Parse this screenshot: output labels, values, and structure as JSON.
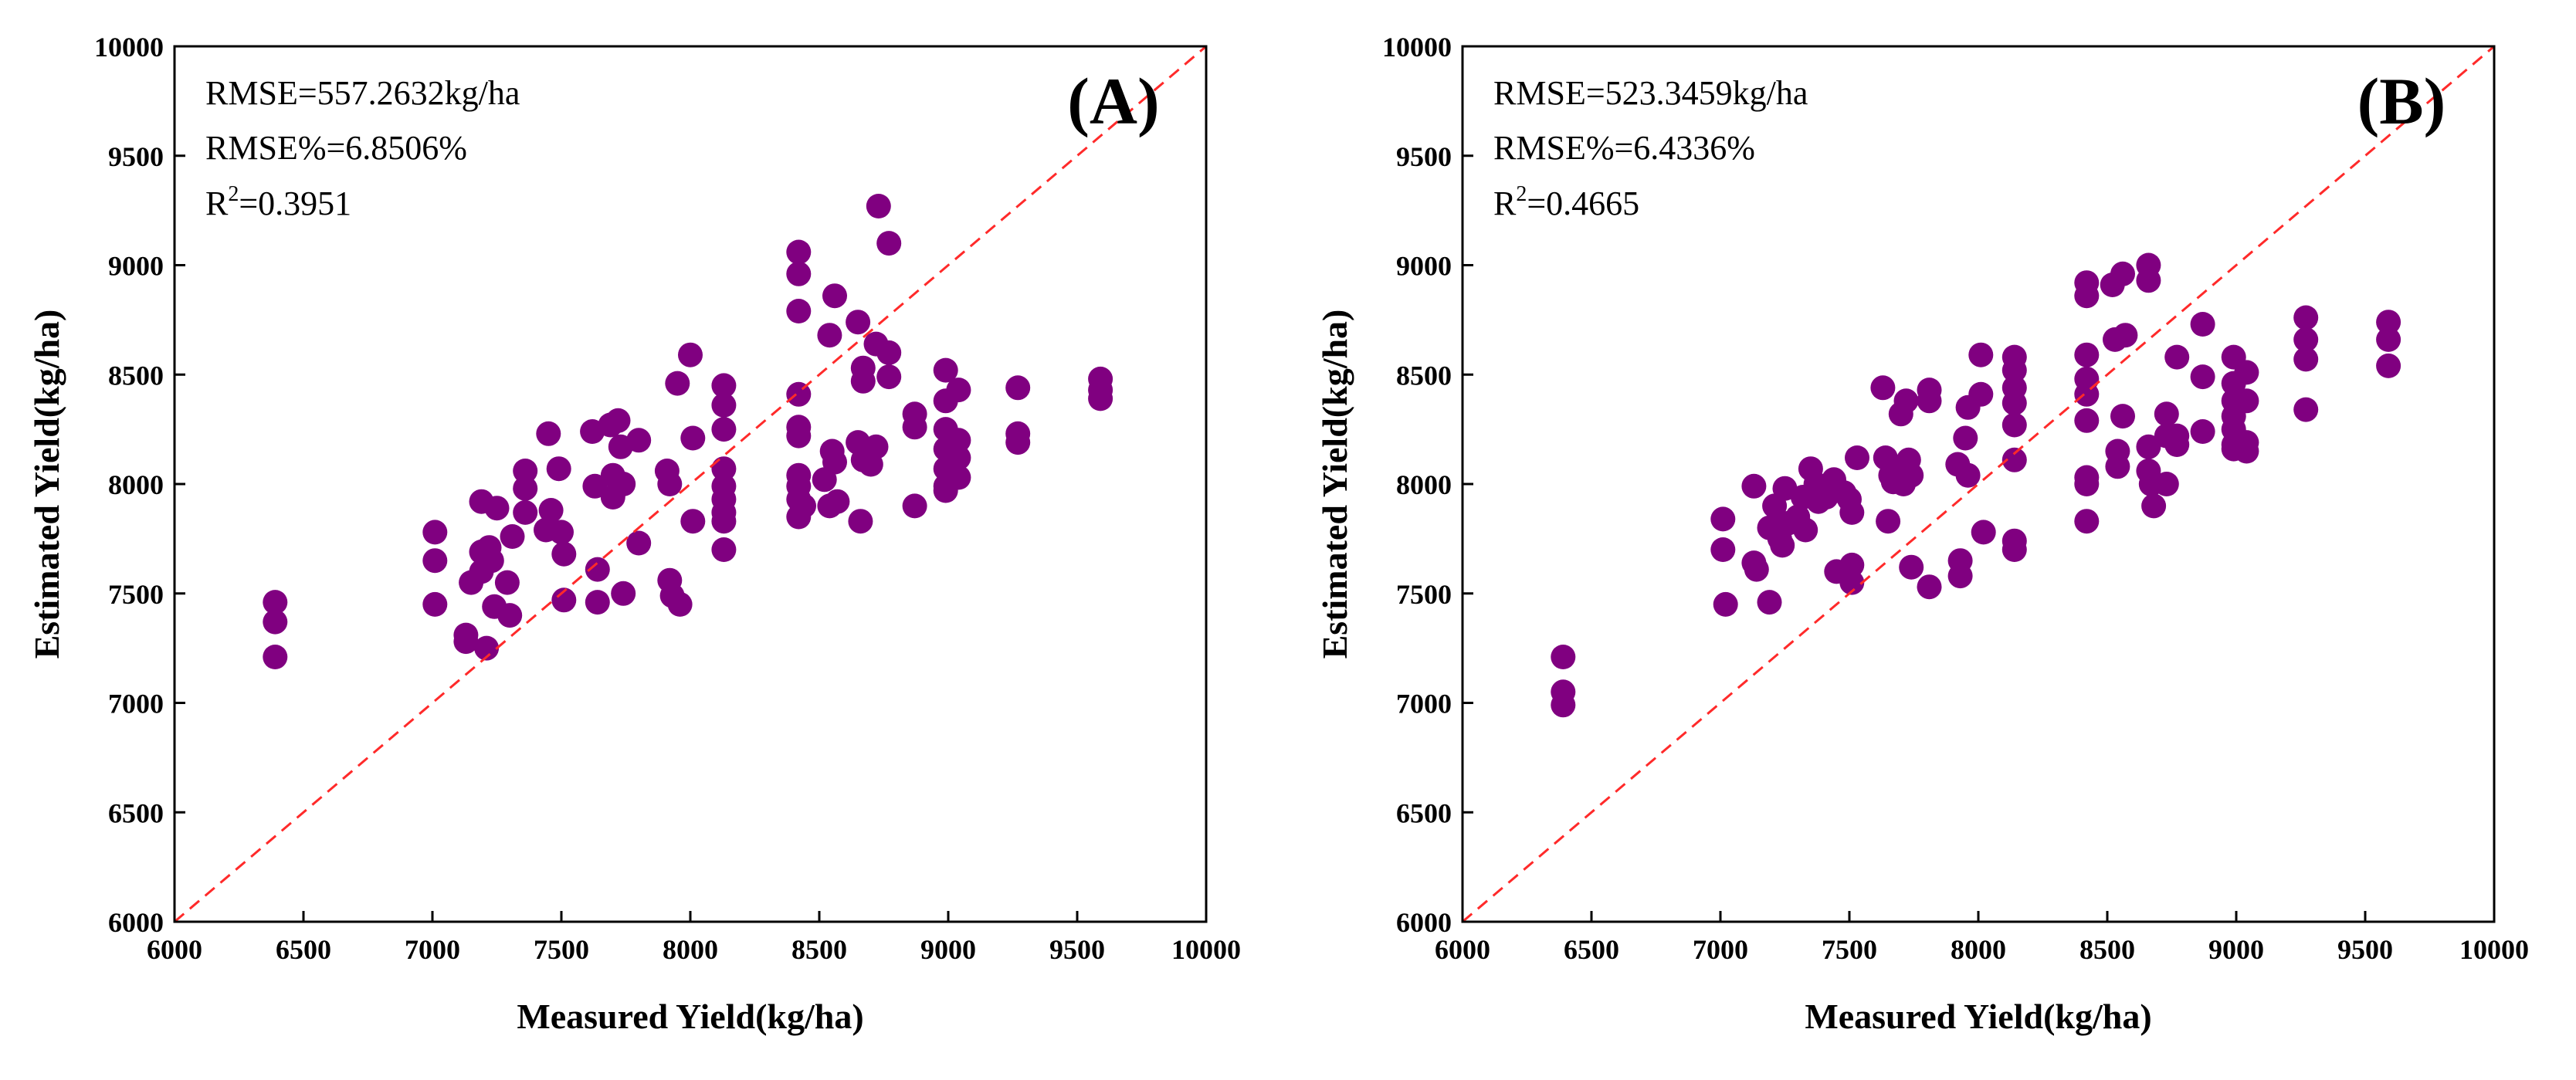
{
  "chart_data": [
    {
      "type": "scatter",
      "panel_label": "(A)",
      "xlabel": "Measured Yield(kg/ha)",
      "ylabel": "Estimated Yield(kg/ha)",
      "xlim": [
        6000,
        10000
      ],
      "ylim": [
        6000,
        10000
      ],
      "xticks": [
        "6000",
        "6500",
        "7000",
        "7500",
        "8000",
        "8500",
        "9000",
        "9500",
        "10000"
      ],
      "yticks": [
        "6000",
        "6500",
        "7000",
        "7500",
        "8000",
        "8500",
        "9000",
        "9500",
        "10000"
      ],
      "grid": false,
      "stats": {
        "rmse": "RMSE=557.2632kg/ha",
        "rmse_pct": "RMSE%=6.8506%",
        "r2_prefix": "R",
        "r2_sup": "2",
        "r2_value": "=0.3951"
      },
      "reference_line": "1:1",
      "colors": {
        "points": "#800080",
        "reference_line": "#ff2a2a",
        "axes": "#000000"
      },
      "points": [
        [
          6390,
          7460
        ],
        [
          6390,
          7370
        ],
        [
          6390,
          7210
        ],
        [
          7010,
          7780
        ],
        [
          7010,
          7650
        ],
        [
          7010,
          7450
        ],
        [
          7130,
          7310
        ],
        [
          7130,
          7280
        ],
        [
          7150,
          7550
        ],
        [
          7190,
          7920
        ],
        [
          7190,
          7690
        ],
        [
          7190,
          7600
        ],
        [
          7210,
          7250
        ],
        [
          7220,
          7710
        ],
        [
          7230,
          7650
        ],
        [
          7240,
          7440
        ],
        [
          7250,
          7890
        ],
        [
          7290,
          7550
        ],
        [
          7300,
          7400
        ],
        [
          7310,
          7760
        ],
        [
          7360,
          8060
        ],
        [
          7360,
          7980
        ],
        [
          7360,
          7870
        ],
        [
          7440,
          7790
        ],
        [
          7450,
          8230
        ],
        [
          7460,
          7880
        ],
        [
          7490,
          8070
        ],
        [
          7500,
          7780
        ],
        [
          7510,
          7680
        ],
        [
          7510,
          7470
        ],
        [
          7620,
          8240
        ],
        [
          7630,
          7990
        ],
        [
          7640,
          7610
        ],
        [
          7640,
          7460
        ],
        [
          7690,
          8270
        ],
        [
          7700,
          8040
        ],
        [
          7700,
          7940
        ],
        [
          7720,
          8290
        ],
        [
          7730,
          8170
        ],
        [
          7740,
          8000
        ],
        [
          7740,
          7500
        ],
        [
          7800,
          8200
        ],
        [
          7800,
          7730
        ],
        [
          7910,
          8060
        ],
        [
          7920,
          8000
        ],
        [
          7920,
          7560
        ],
        [
          7930,
          7490
        ],
        [
          7950,
          8460
        ],
        [
          7960,
          7450
        ],
        [
          8000,
          8590
        ],
        [
          8010,
          8210
        ],
        [
          8010,
          7830
        ],
        [
          8130,
          8450
        ],
        [
          8130,
          8360
        ],
        [
          8130,
          8250
        ],
        [
          8130,
          8070
        ],
        [
          8130,
          7990
        ],
        [
          8130,
          7930
        ],
        [
          8130,
          7870
        ],
        [
          8130,
          7830
        ],
        [
          8130,
          7700
        ],
        [
          8420,
          9060
        ],
        [
          8420,
          8960
        ],
        [
          8420,
          8790
        ],
        [
          8420,
          8410
        ],
        [
          8420,
          8260
        ],
        [
          8420,
          8220
        ],
        [
          8420,
          8040
        ],
        [
          8420,
          7990
        ],
        [
          8420,
          7930
        ],
        [
          8420,
          7850
        ],
        [
          8440,
          7900
        ],
        [
          8520,
          8020
        ],
        [
          8540,
          8680
        ],
        [
          8540,
          7900
        ],
        [
          8550,
          8150
        ],
        [
          8560,
          8860
        ],
        [
          8560,
          8100
        ],
        [
          8570,
          7920
        ],
        [
          8650,
          8740
        ],
        [
          8650,
          8190
        ],
        [
          8660,
          7830
        ],
        [
          8670,
          8530
        ],
        [
          8670,
          8470
        ],
        [
          8670,
          8110
        ],
        [
          8700,
          8090
        ],
        [
          8720,
          8640
        ],
        [
          8720,
          8170
        ],
        [
          8730,
          9270
        ],
        [
          8770,
          9100
        ],
        [
          8770,
          8600
        ],
        [
          8770,
          8490
        ],
        [
          8870,
          8320
        ],
        [
          8870,
          8260
        ],
        [
          8870,
          7900
        ],
        [
          8990,
          8520
        ],
        [
          8990,
          8380
        ],
        [
          8990,
          8250
        ],
        [
          8990,
          8160
        ],
        [
          8990,
          8070
        ],
        [
          8990,
          7990
        ],
        [
          8990,
          7970
        ],
        [
          9040,
          8430
        ],
        [
          9040,
          8200
        ],
        [
          9040,
          8120
        ],
        [
          9040,
          8030
        ],
        [
          9270,
          8440
        ],
        [
          9270,
          8230
        ],
        [
          9270,
          8190
        ],
        [
          9590,
          8480
        ],
        [
          9590,
          8430
        ],
        [
          9590,
          8390
        ]
      ]
    },
    {
      "type": "scatter",
      "panel_label": "(B)",
      "xlabel": "Measured Yield(kg/ha)",
      "ylabel": "Estimated Yield(kg/ha)",
      "xlim": [
        6000,
        10000
      ],
      "ylim": [
        6000,
        10000
      ],
      "xticks": [
        "6000",
        "6500",
        "7000",
        "7500",
        "8000",
        "8500",
        "9000",
        "9500",
        "10000"
      ],
      "yticks": [
        "6000",
        "6500",
        "7000",
        "7500",
        "8000",
        "8500",
        "9000",
        "9500",
        "10000"
      ],
      "grid": false,
      "stats": {
        "rmse": "RMSE=523.3459kg/ha",
        "rmse_pct": "RMSE%=6.4336%",
        "r2_prefix": "R",
        "r2_sup": "2",
        "r2_value": "=0.4665"
      },
      "reference_line": "1:1",
      "colors": {
        "points": "#800080",
        "reference_line": "#ff2a2a",
        "axes": "#000000"
      },
      "points": [
        [
          6390,
          7210
        ],
        [
          6390,
          7050
        ],
        [
          6390,
          6990
        ],
        [
          7010,
          7840
        ],
        [
          7010,
          7700
        ],
        [
          7020,
          7450
        ],
        [
          7130,
          7990
        ],
        [
          7130,
          7640
        ],
        [
          7140,
          7610
        ],
        [
          7190,
          7800
        ],
        [
          7190,
          7460
        ],
        [
          7210,
          7900
        ],
        [
          7230,
          7750
        ],
        [
          7240,
          7720
        ],
        [
          7250,
          7980
        ],
        [
          7260,
          7820
        ],
        [
          7300,
          7850
        ],
        [
          7320,
          7940
        ],
        [
          7330,
          7790
        ],
        [
          7350,
          8070
        ],
        [
          7370,
          8000
        ],
        [
          7380,
          7920
        ],
        [
          7410,
          7940
        ],
        [
          7440,
          8020
        ],
        [
          7450,
          7600
        ],
        [
          7480,
          7960
        ],
        [
          7500,
          7930
        ],
        [
          7510,
          7870
        ],
        [
          7510,
          7630
        ],
        [
          7510,
          7550
        ],
        [
          7530,
          8120
        ],
        [
          7630,
          8440
        ],
        [
          7640,
          8120
        ],
        [
          7650,
          7830
        ],
        [
          7660,
          8040
        ],
        [
          7670,
          8010
        ],
        [
          7700,
          8080
        ],
        [
          7700,
          8320
        ],
        [
          7710,
          8000
        ],
        [
          7720,
          8380
        ],
        [
          7730,
          8110
        ],
        [
          7740,
          8040
        ],
        [
          7740,
          7620
        ],
        [
          7810,
          8430
        ],
        [
          7810,
          8380
        ],
        [
          7810,
          7530
        ],
        [
          7920,
          8090
        ],
        [
          7930,
          7650
        ],
        [
          7930,
          7580
        ],
        [
          7950,
          8210
        ],
        [
          7960,
          8040
        ],
        [
          7960,
          8350
        ],
        [
          8010,
          8590
        ],
        [
          8010,
          8410
        ],
        [
          8020,
          7780
        ],
        [
          8140,
          8580
        ],
        [
          8140,
          8520
        ],
        [
          8140,
          8440
        ],
        [
          8140,
          8370
        ],
        [
          8140,
          8270
        ],
        [
          8140,
          8110
        ],
        [
          8140,
          7740
        ],
        [
          8140,
          7700
        ],
        [
          8420,
          8920
        ],
        [
          8420,
          8860
        ],
        [
          8420,
          8590
        ],
        [
          8420,
          8480
        ],
        [
          8420,
          8410
        ],
        [
          8420,
          8290
        ],
        [
          8420,
          8030
        ],
        [
          8420,
          8000
        ],
        [
          8420,
          7830
        ],
        [
          8520,
          8910
        ],
        [
          8530,
          8660
        ],
        [
          8540,
          8150
        ],
        [
          8540,
          8080
        ],
        [
          8560,
          8960
        ],
        [
          8560,
          8310
        ],
        [
          8570,
          8680
        ],
        [
          8660,
          9000
        ],
        [
          8660,
          8930
        ],
        [
          8660,
          8170
        ],
        [
          8660,
          8060
        ],
        [
          8670,
          8000
        ],
        [
          8680,
          7900
        ],
        [
          8730,
          8320
        ],
        [
          8730,
          8220
        ],
        [
          8730,
          8000
        ],
        [
          8770,
          8580
        ],
        [
          8770,
          8220
        ],
        [
          8770,
          8180
        ],
        [
          8870,
          8730
        ],
        [
          8870,
          8490
        ],
        [
          8870,
          8240
        ],
        [
          8990,
          8580
        ],
        [
          8990,
          8460
        ],
        [
          8990,
          8380
        ],
        [
          8990,
          8310
        ],
        [
          8990,
          8250
        ],
        [
          8990,
          8180
        ],
        [
          8990,
          8160
        ],
        [
          9040,
          8510
        ],
        [
          9040,
          8380
        ],
        [
          9040,
          8190
        ],
        [
          9040,
          8150
        ],
        [
          9270,
          8760
        ],
        [
          9270,
          8660
        ],
        [
          9270,
          8570
        ],
        [
          9270,
          8340
        ],
        [
          9590,
          8740
        ],
        [
          9590,
          8660
        ],
        [
          9590,
          8540
        ]
      ]
    }
  ]
}
